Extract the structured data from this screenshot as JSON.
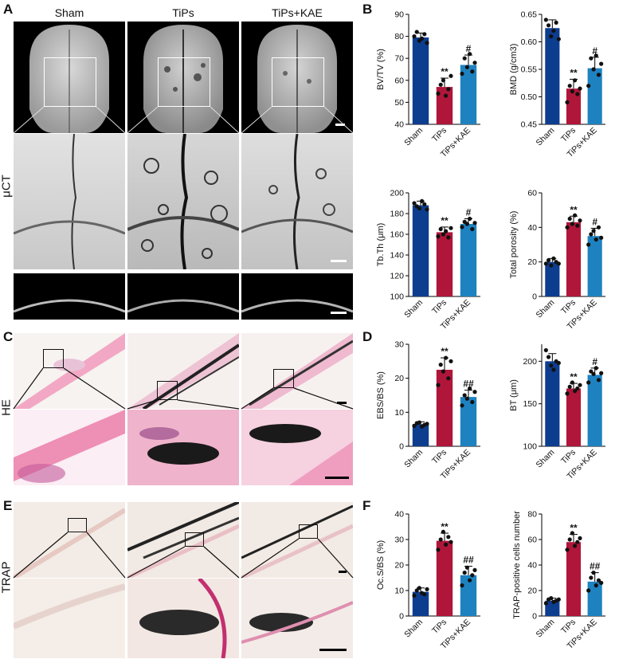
{
  "panels": {
    "A": "A",
    "B": "B",
    "C": "C",
    "D": "D",
    "E": "E",
    "F": "F"
  },
  "columns": [
    "Sham",
    "TiPs",
    "TiPs+KAE"
  ],
  "rows": {
    "uct": "μCT",
    "he": "HE",
    "trap": "TRAP"
  },
  "colors": {
    "sham": "#0d3d8f",
    "tips": "#b0163a",
    "kae": "#1e82c0",
    "he_pink": "#f2a8c4",
    "trap_bg": "#f3ece6"
  },
  "chart_data": [
    {
      "type": "bar",
      "panel": "B",
      "ylabel": "BV/TV (%)",
      "ylim": [
        40,
        90
      ],
      "yticks": [
        40,
        50,
        60,
        70,
        80,
        90
      ],
      "categories": [
        "Sham",
        "TiPs",
        "TiPs+KAE"
      ],
      "values": [
        79.5,
        57,
        67
      ],
      "errors": [
        2,
        4,
        4.5
      ],
      "points": [
        [
          80,
          82,
          78,
          79,
          81,
          77
        ],
        [
          54,
          58,
          60,
          53,
          56,
          62
        ],
        [
          63,
          70,
          66,
          72,
          64,
          68
        ]
      ],
      "sig": [
        "",
        "**",
        "#"
      ]
    },
    {
      "type": "bar",
      "panel": "B",
      "ylabel": "BMD (g/cm3)",
      "ylim": [
        0.45,
        0.65
      ],
      "yticks": [
        "0.45",
        "0.50",
        "0.55",
        "0.60",
        "0.65"
      ],
      "categories": [
        "Sham",
        "TiPs",
        "TiPs+KAE"
      ],
      "values": [
        0.625,
        0.515,
        0.552
      ],
      "errors": [
        0.015,
        0.017,
        0.02
      ],
      "points": [
        [
          0.64,
          0.63,
          0.61,
          0.62,
          0.635,
          0.605
        ],
        [
          0.49,
          0.52,
          0.51,
          0.53,
          0.505,
          0.515
        ],
        [
          0.52,
          0.57,
          0.55,
          0.575,
          0.54,
          0.56
        ]
      ],
      "sig": [
        "",
        "**",
        "#"
      ]
    },
    {
      "type": "bar",
      "panel": "B",
      "ylabel": "Tb.Th (μm)",
      "ylim": [
        100,
        200
      ],
      "yticks": [
        100,
        120,
        140,
        160,
        180,
        200
      ],
      "categories": [
        "Sham",
        "TiPs",
        "TiPs+KAE"
      ],
      "values": [
        188,
        162,
        170
      ],
      "errors": [
        4,
        5,
        5
      ],
      "points": [
        [
          190,
          187,
          185,
          192,
          189,
          184
        ],
        [
          158,
          165,
          160,
          163,
          157,
          166
        ],
        [
          167,
          172,
          170,
          175,
          165,
          171
        ]
      ],
      "sig": [
        "",
        "**",
        "#"
      ]
    },
    {
      "type": "bar",
      "panel": "B",
      "ylabel": "Total porosity (%)",
      "ylim": [
        0,
        60
      ],
      "yticks": [
        0,
        20,
        40,
        60
      ],
      "categories": [
        "Sham",
        "TiPs",
        "TiPs+KAE"
      ],
      "values": [
        20,
        43,
        35
      ],
      "errors": [
        2,
        3.5,
        4.5
      ],
      "points": [
        [
          19,
          21,
          18,
          22,
          20,
          19
        ],
        [
          40,
          45,
          42,
          47,
          41,
          44
        ],
        [
          30,
          36,
          38,
          33,
          40,
          34
        ]
      ],
      "sig": [
        "",
        "**",
        "#"
      ]
    },
    {
      "type": "bar",
      "panel": "D",
      "ylabel": "EBS/BS (%)",
      "ylim": [
        0,
        30
      ],
      "yticks": [
        0,
        10,
        20,
        30
      ],
      "categories": [
        "Sham",
        "TiPs",
        "TiPs+KAE"
      ],
      "values": [
        6.5,
        22.5,
        14.5
      ],
      "errors": [
        0.7,
        3.5,
        2
      ],
      "points": [
        [
          6,
          6.8,
          7,
          5.8,
          6.3,
          6.6
        ],
        [
          18,
          24,
          22,
          26,
          20,
          25
        ],
        [
          12,
          15,
          14,
          17,
          13,
          16
        ]
      ],
      "sig": [
        "",
        "**",
        "##"
      ]
    },
    {
      "type": "bar",
      "panel": "D",
      "ylabel": "BT (μm)",
      "ylim": [
        100,
        220
      ],
      "yticks": [
        100,
        150,
        200
      ],
      "categories": [
        "Sham",
        "TiPs",
        "TiPs+KAE"
      ],
      "values": [
        200,
        168,
        184
      ],
      "errors": [
        9,
        6,
        8
      ],
      "points": [
        [
          213,
          205,
          195,
          190,
          200,
          198
        ],
        [
          162,
          170,
          175,
          165,
          168,
          172
        ],
        [
          175,
          188,
          185,
          192,
          178,
          186
        ]
      ],
      "sig": [
        "",
        "**",
        "#"
      ]
    },
    {
      "type": "bar",
      "panel": "F",
      "ylabel": "Oc.S/BS (%)",
      "ylim": [
        0,
        40
      ],
      "yticks": [
        0,
        10,
        20,
        30,
        40
      ],
      "categories": [
        "Sham",
        "TiPs",
        "TiPs+KAE"
      ],
      "values": [
        9.5,
        29.5,
        16
      ],
      "errors": [
        1.5,
        3,
        3.5
      ],
      "points": [
        [
          8,
          10,
          11,
          9,
          8.5,
          10.5
        ],
        [
          26,
          30,
          33,
          28,
          31,
          29
        ],
        [
          12,
          17,
          19,
          14,
          16,
          18
        ]
      ],
      "sig": [
        "",
        "**",
        "##"
      ]
    },
    {
      "type": "bar",
      "panel": "F",
      "ylabel": "TRAP-positive cells number",
      "ylim": [
        0,
        80
      ],
      "yticks": [
        0,
        20,
        40,
        60,
        80
      ],
      "categories": [
        "Sham",
        "TiPs",
        "TiPs+KAE"
      ],
      "values": [
        12,
        58,
        27
      ],
      "errors": [
        2,
        6,
        7
      ],
      "points": [
        [
          10,
          13,
          14,
          11,
          12,
          13
        ],
        [
          52,
          60,
          65,
          55,
          58,
          61
        ],
        [
          20,
          30,
          34,
          24,
          28,
          26
        ]
      ],
      "sig": [
        "",
        "**",
        "##"
      ]
    }
  ]
}
